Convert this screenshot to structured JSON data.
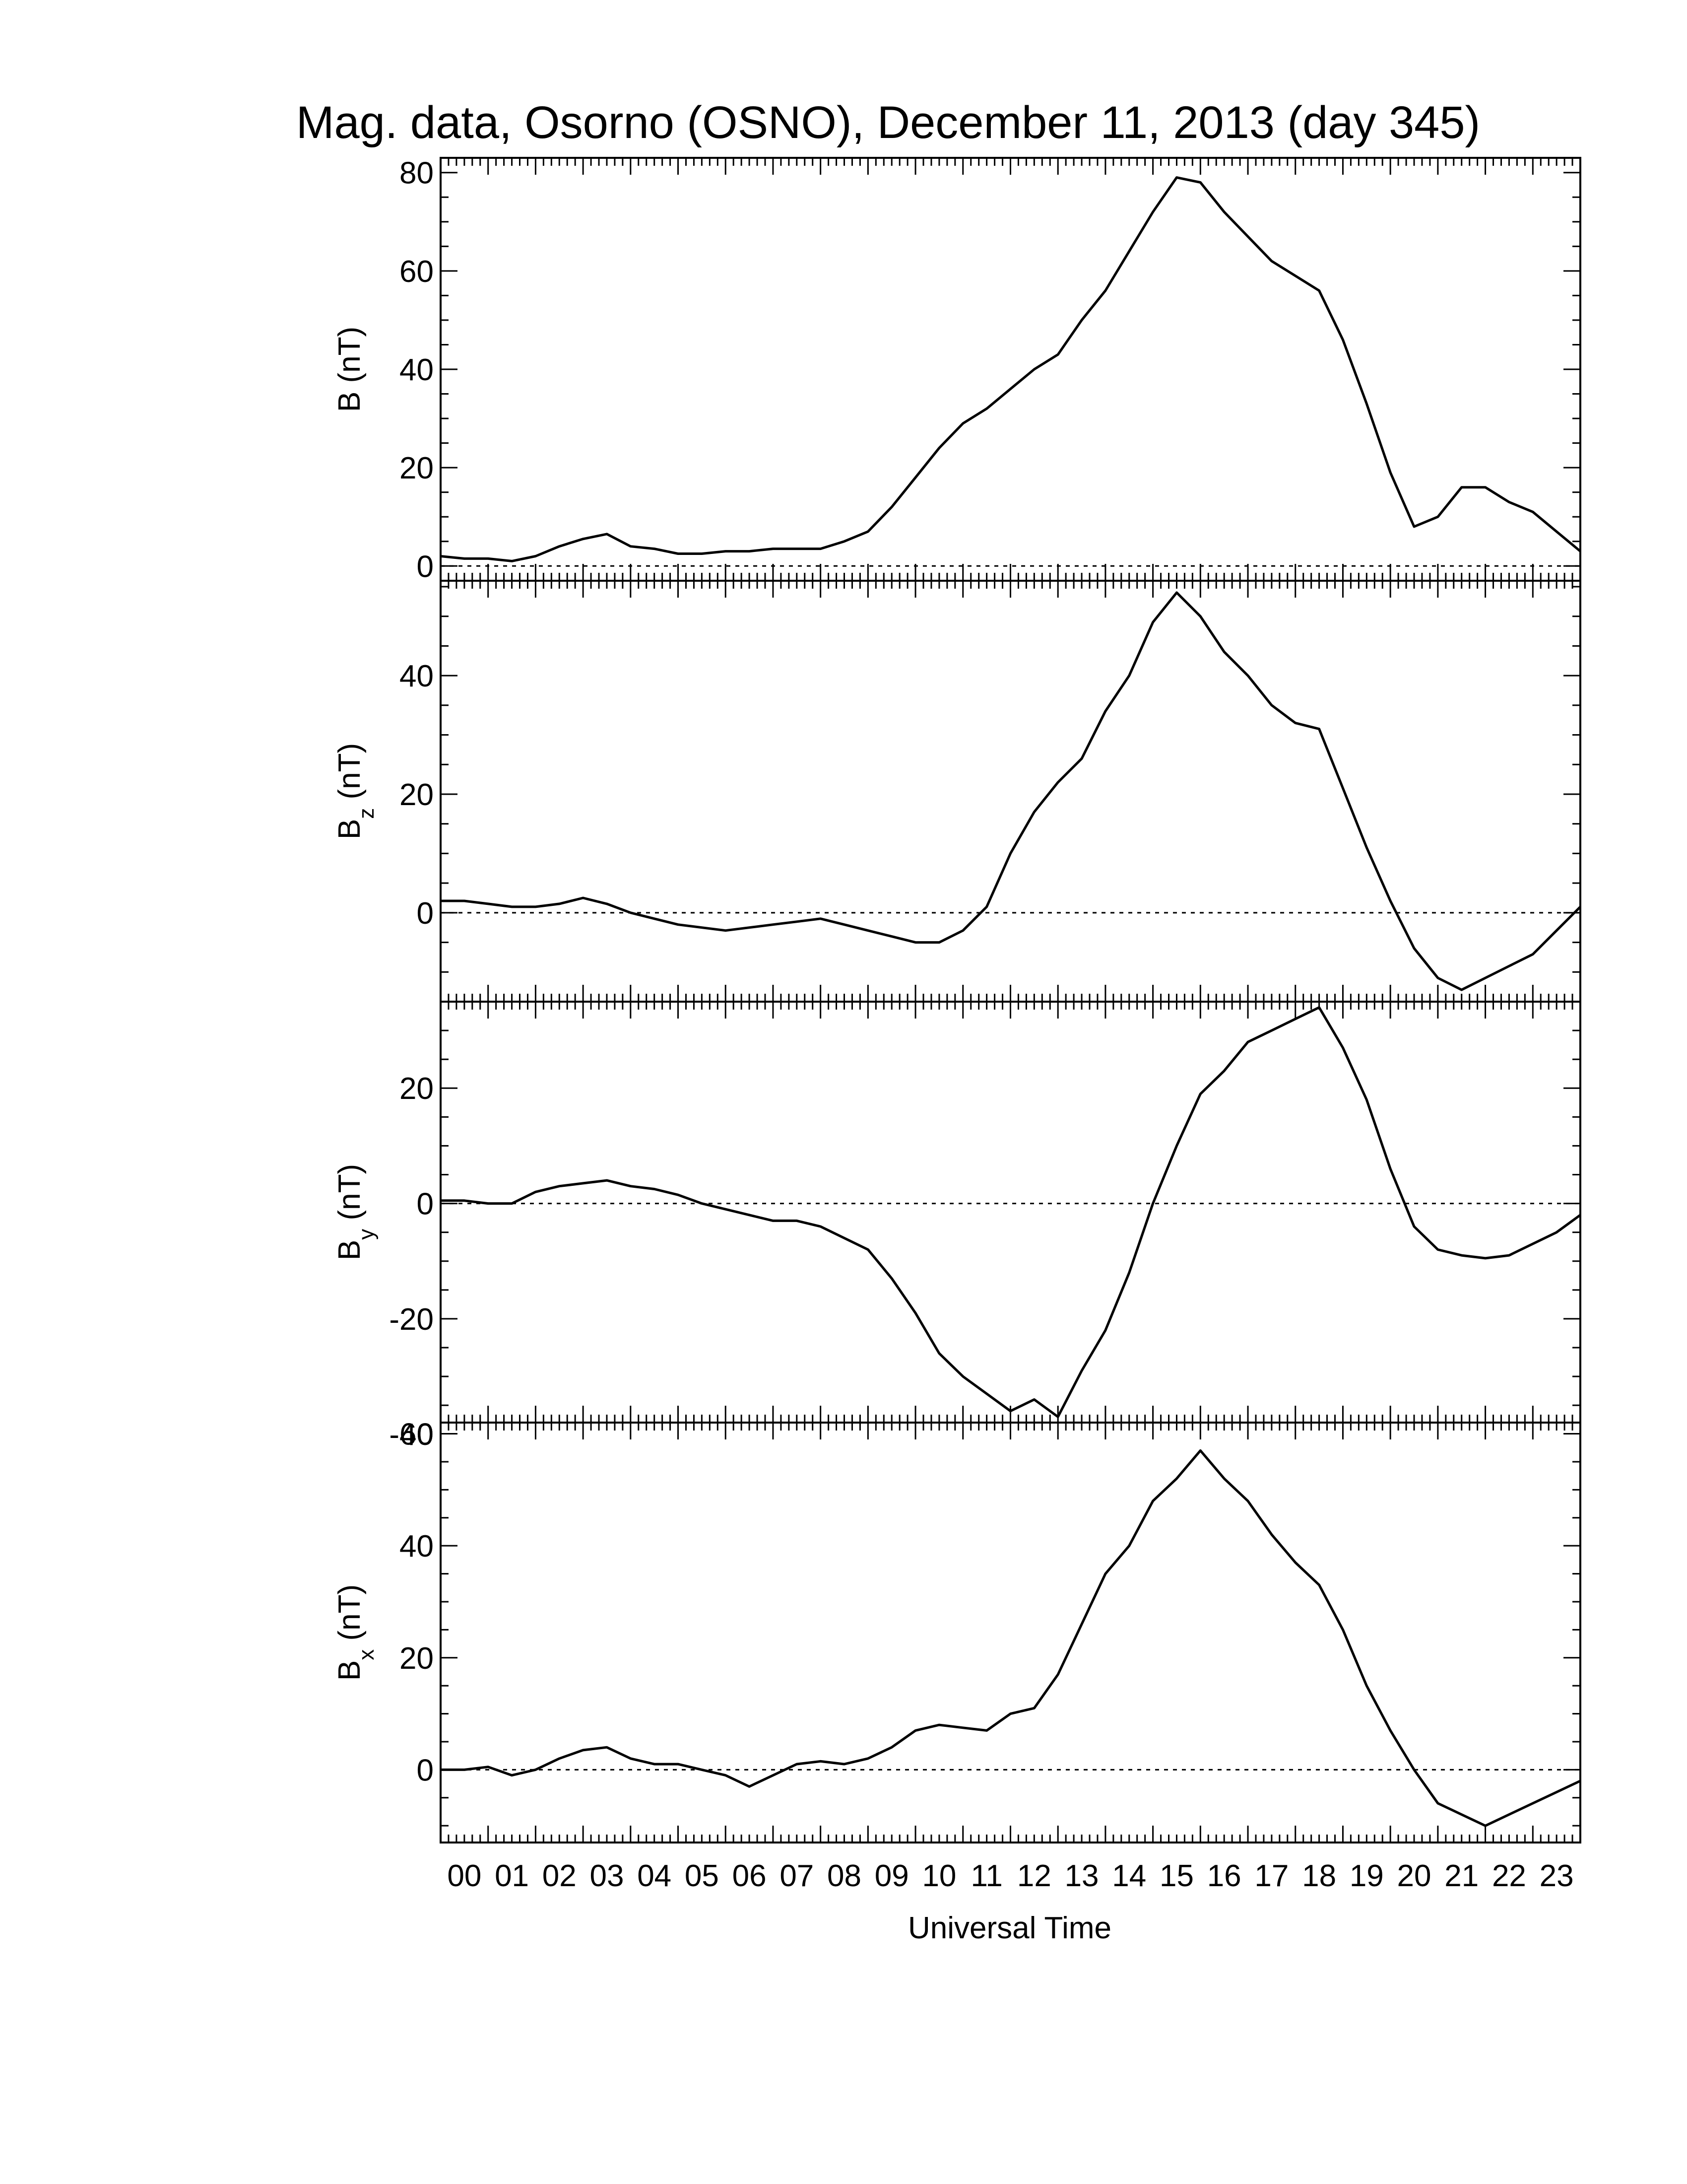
{
  "chart_data": {
    "type": "line",
    "title": "Mag. data, Osorno (OSNO), December 11, 2013 (day 345)",
    "xlabel": "Universal Time",
    "x_tick_labels": [
      "00",
      "01",
      "02",
      "03",
      "04",
      "05",
      "06",
      "07",
      "08",
      "09",
      "10",
      "11",
      "12",
      "13",
      "14",
      "15",
      "16",
      "17",
      "18",
      "19",
      "20",
      "21",
      "22",
      "23"
    ],
    "xlim": [
      0,
      24
    ],
    "panels": [
      {
        "ylabel_main": "B",
        "ylabel_sub": "",
        "ylabel_unit": " (nT)",
        "ylim": [
          -3,
          83
        ],
        "yticks": [
          0,
          20,
          40,
          60,
          80
        ],
        "ytick_labels": [
          "0",
          "20",
          "40",
          "60",
          "80"
        ],
        "x": [
          0,
          0.5,
          1,
          1.5,
          2,
          2.5,
          3,
          3.5,
          4,
          4.5,
          5,
          5.5,
          6,
          6.5,
          7,
          7.5,
          8,
          8.5,
          9,
          9.5,
          10,
          10.5,
          11,
          11.5,
          12,
          12.5,
          13,
          13.5,
          14,
          14.5,
          15,
          15.5,
          16,
          16.5,
          17,
          17.5,
          18,
          18.5,
          19,
          19.5,
          20,
          20.5,
          21,
          21.5,
          22,
          22.5,
          23,
          23.5,
          24
        ],
        "values": [
          2,
          1.5,
          1.5,
          1,
          2,
          4,
          5.5,
          6.5,
          4,
          3.5,
          2.5,
          2.5,
          3,
          3,
          3.5,
          3.5,
          3.5,
          5,
          7,
          12,
          18,
          24,
          29,
          32,
          36,
          40,
          43,
          50,
          56,
          64,
          72,
          79,
          78,
          72,
          67,
          62,
          59,
          56,
          46,
          33,
          19,
          8,
          10,
          16,
          16,
          13,
          11,
          7,
          3
        ]
      },
      {
        "ylabel_main": "B",
        "ylabel_sub": "z",
        "ylabel_unit": " (nT)",
        "ylim": [
          -15,
          56
        ],
        "yticks": [
          0,
          20,
          40
        ],
        "ytick_labels": [
          "0",
          "20",
          "40"
        ],
        "x": [
          0,
          0.5,
          1,
          1.5,
          2,
          2.5,
          3,
          3.5,
          4,
          4.5,
          5,
          5.5,
          6,
          6.5,
          7,
          7.5,
          8,
          8.5,
          9,
          9.5,
          10,
          10.5,
          11,
          11.5,
          12,
          12.5,
          13,
          13.5,
          14,
          14.5,
          15,
          15.5,
          16,
          16.5,
          17,
          17.5,
          18,
          18.5,
          19,
          19.5,
          20,
          20.5,
          21,
          21.5,
          22,
          22.5,
          23,
          23.5,
          24
        ],
        "values": [
          2,
          2,
          1.5,
          1,
          1,
          1.5,
          2.5,
          1.5,
          0,
          -1,
          -2,
          -2.5,
          -3,
          -2.5,
          -2,
          -1.5,
          -1,
          -2,
          -3,
          -4,
          -5,
          -5,
          -3,
          1,
          10,
          17,
          22,
          26,
          34,
          40,
          49,
          54,
          50,
          44,
          40,
          35,
          32,
          31,
          21,
          11,
          2,
          -6,
          -11,
          -13,
          -11,
          -9,
          -7,
          -3,
          1
        ]
      },
      {
        "ylabel_main": "B",
        "ylabel_sub": "y",
        "ylabel_unit": " (nT)",
        "ylim": [
          -38,
          35
        ],
        "yticks": [
          -40,
          -20,
          0,
          20
        ],
        "ytick_labels": [
          "-40",
          "-20",
          "0",
          "20"
        ],
        "x": [
          0,
          0.5,
          1,
          1.5,
          2,
          2.5,
          3,
          3.5,
          4,
          4.5,
          5,
          5.5,
          6,
          6.5,
          7,
          7.5,
          8,
          8.5,
          9,
          9.5,
          10,
          10.5,
          11,
          11.5,
          12,
          12.5,
          13,
          13.5,
          14,
          14.5,
          15,
          15.5,
          16,
          16.5,
          17,
          17.5,
          18,
          18.5,
          19,
          19.5,
          20,
          20.5,
          21,
          21.5,
          22,
          22.5,
          23,
          23.5,
          24
        ],
        "values": [
          0.5,
          0.5,
          0,
          0,
          2,
          3,
          3.5,
          4,
          3,
          2.5,
          1.5,
          0,
          -1,
          -2,
          -3,
          -3,
          -4,
          -6,
          -8,
          -13,
          -19,
          -26,
          -30,
          -33,
          -36,
          -34,
          -37,
          -29,
          -22,
          -12,
          0,
          10,
          19,
          23,
          28,
          30,
          32,
          34,
          27,
          18,
          6,
          -4,
          -8,
          -9,
          -9.5,
          -9,
          -7,
          -5,
          -2
        ]
      },
      {
        "ylabel_main": "B",
        "ylabel_sub": "x",
        "ylabel_unit": " (nT)",
        "ylim": [
          -13,
          62
        ],
        "yticks": [
          0,
          20,
          40,
          60
        ],
        "ytick_labels": [
          "0",
          "20",
          "40",
          "60"
        ],
        "x": [
          0,
          0.5,
          1,
          1.5,
          2,
          2.5,
          3,
          3.5,
          4,
          4.5,
          5,
          5.5,
          6,
          6.5,
          7,
          7.5,
          8,
          8.5,
          9,
          9.5,
          10,
          10.5,
          11,
          11.5,
          12,
          12.5,
          13,
          13.5,
          14,
          14.5,
          15,
          15.5,
          16,
          16.5,
          17,
          17.5,
          18,
          18.5,
          19,
          19.5,
          20,
          20.5,
          21,
          21.5,
          22,
          22.5,
          23,
          23.5,
          24
        ],
        "values": [
          0,
          0,
          0.5,
          -1,
          0,
          2,
          3.5,
          4,
          2,
          1,
          1,
          0,
          -1,
          -3,
          -1,
          1,
          1.5,
          1,
          2,
          4,
          7,
          8,
          7.5,
          7,
          10,
          11,
          17,
          26,
          35,
          40,
          48,
          52,
          57,
          52,
          48,
          42,
          37,
          33,
          25,
          15,
          7,
          0,
          -6,
          -8,
          -10,
          -8,
          -6,
          -4,
          -2
        ]
      }
    ]
  }
}
